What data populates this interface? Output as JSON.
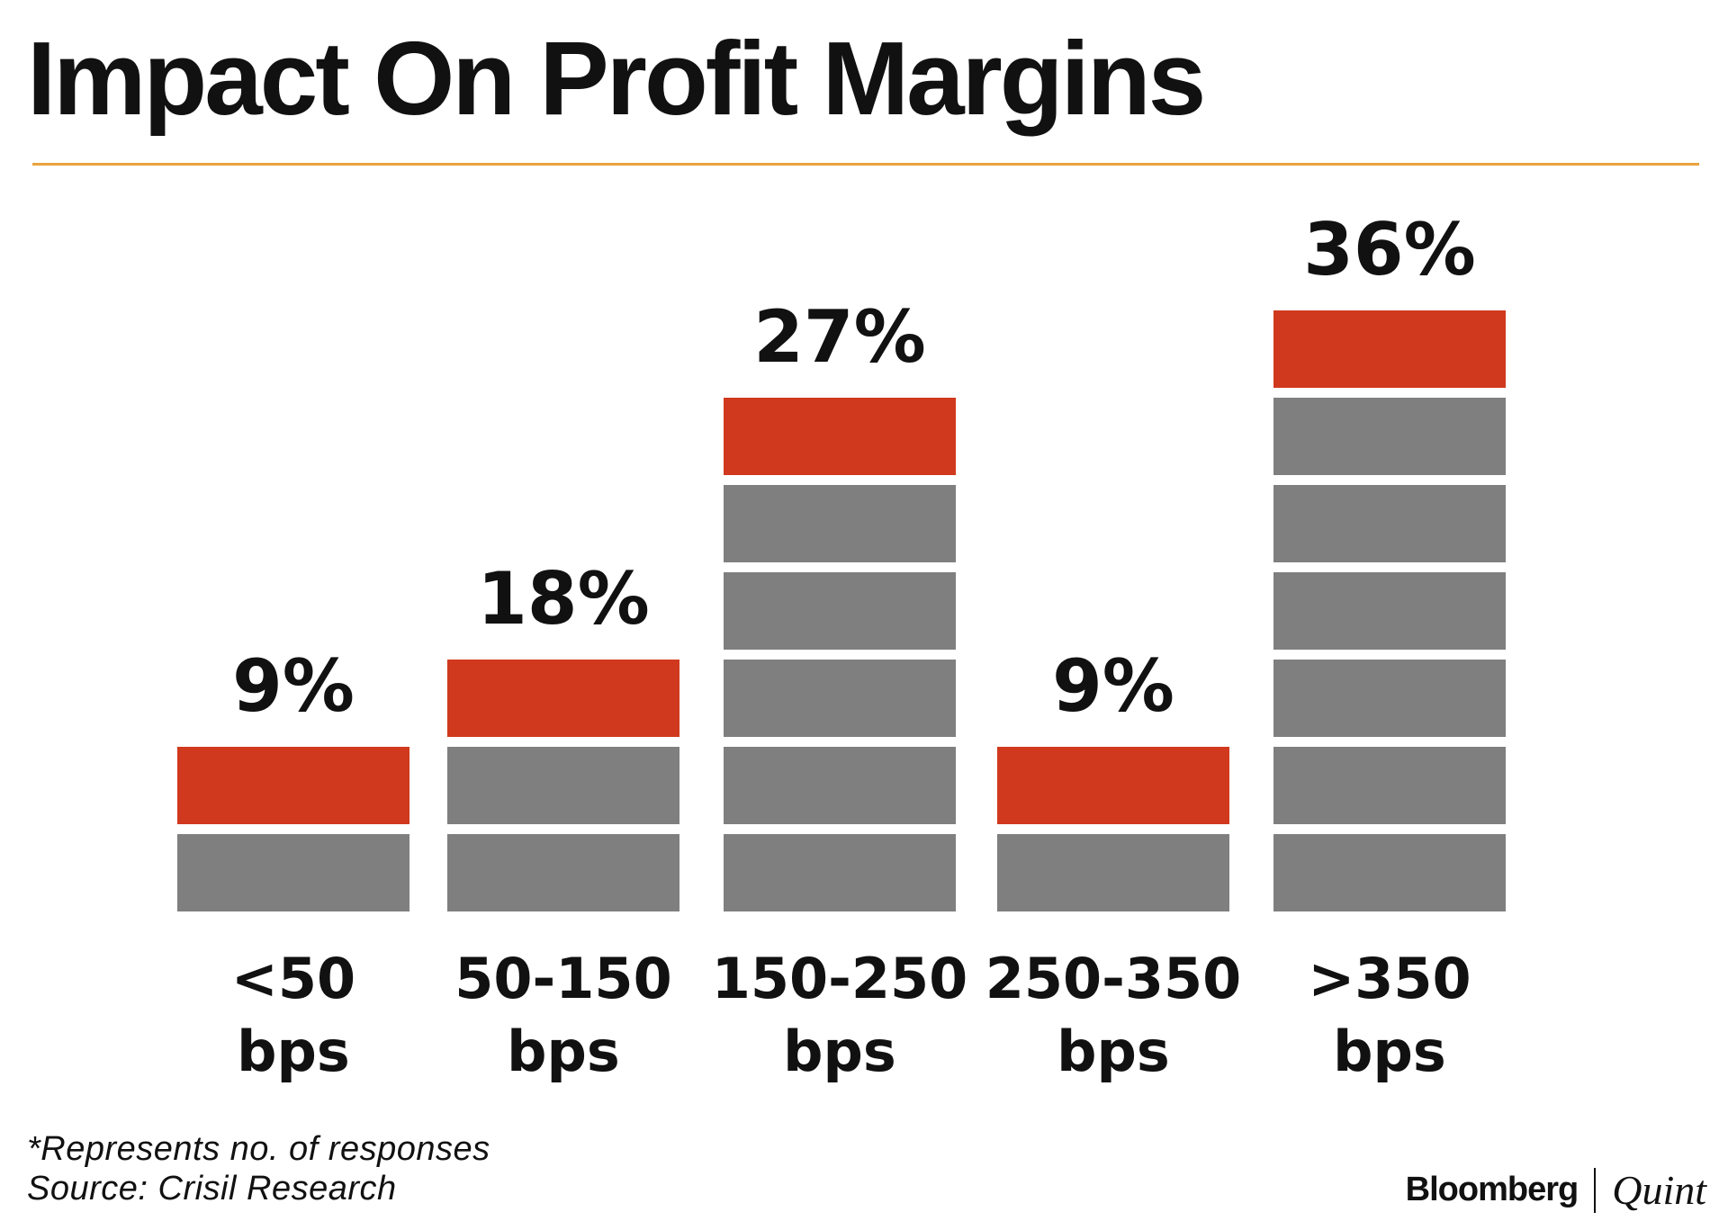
{
  "title": "Impact On Profit Margins",
  "colors": {
    "rule": "#e8a33d",
    "highlight": "#d0391d",
    "block": "#7f7f7f"
  },
  "chart_data": {
    "type": "bar",
    "title": "Impact On Profit Margins",
    "xlabel": "",
    "ylabel": "",
    "ylim": [
      0,
      36
    ],
    "unit": "%",
    "categories": [
      {
        "line1": "<50",
        "line2": "bps"
      },
      {
        "line1": "50-150",
        "line2": "bps"
      },
      {
        "line1": "150-250",
        "line2": "bps"
      },
      {
        "line1": "250-350",
        "line2": "bps"
      },
      {
        "line1": ">350",
        "line2": "bps"
      }
    ],
    "values": [
      9,
      18,
      27,
      9,
      36
    ],
    "value_labels": [
      "9%",
      "18%",
      "27%",
      "9%",
      "36%"
    ],
    "blocks": [
      2,
      3,
      6,
      2,
      7
    ],
    "block_note": "Each stacked block represents a number of responses; top block highlighted in red"
  },
  "footnote": "*Represents no. of responses",
  "source": "Source: Crisil Research",
  "brand": {
    "name": "Bloomberg",
    "sub": "Quint"
  }
}
